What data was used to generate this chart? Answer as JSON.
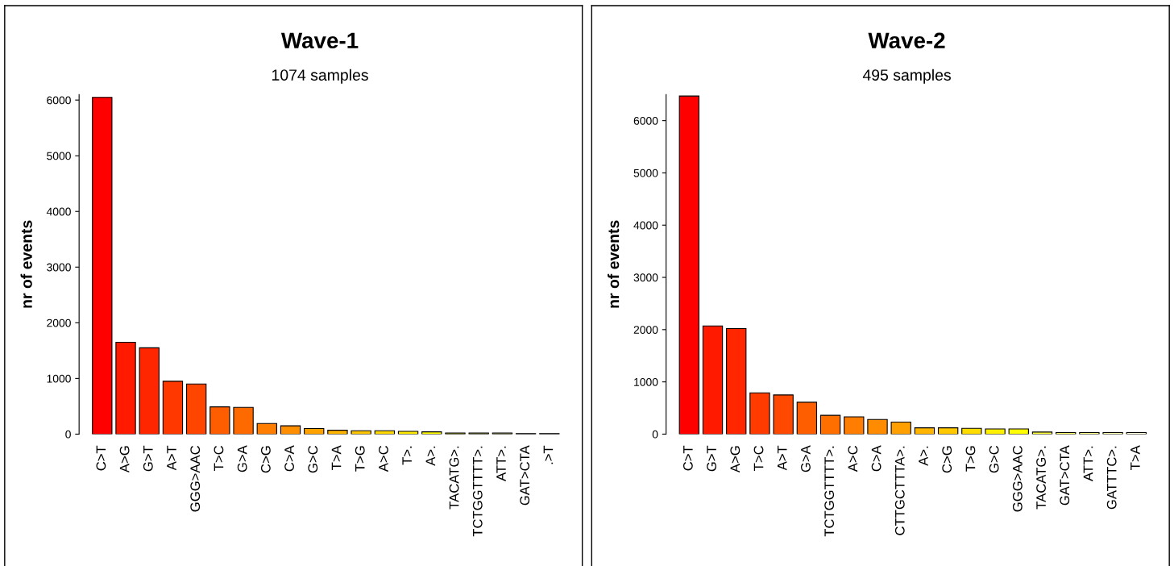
{
  "chart_data": [
    {
      "type": "bar",
      "title": "Wave-1",
      "subtitle": "1074 samples",
      "ylabel": "nr of events",
      "categories": [
        "C>T",
        "A>G",
        "G>T",
        "A>T",
        "GGG>AAC",
        "T>C",
        "G>A",
        "C>G",
        "C>A",
        "G>C",
        "T>A",
        "T>G",
        "A>C",
        "T>.",
        "A>.",
        "TACATG>.",
        "TCTGGTTTT>.",
        "ATT>.",
        "GAT>CTA",
        ".>T"
      ],
      "values": [
        6050,
        1650,
        1550,
        950,
        900,
        490,
        480,
        190,
        150,
        100,
        70,
        60,
        60,
        50,
        40,
        20,
        20,
        20,
        10,
        10
      ],
      "colors": [
        "#ff0000",
        "#ff1a00",
        "#ff2600",
        "#ff3800",
        "#ff4500",
        "#ff5e00",
        "#ff6a00",
        "#ff7d00",
        "#ff8f00",
        "#ffa200",
        "#ffb400",
        "#ffc600",
        "#ffd800",
        "#ffea00",
        "#fffc00",
        "#8a8a1a",
        "#80803a",
        "#8c8c55",
        "#202020",
        "#101010"
      ],
      "ylim": [
        0,
        6100
      ],
      "yticks": [
        0,
        1000,
        2000,
        3000,
        4000,
        5000,
        6000
      ],
      "grid": false,
      "legend": false
    },
    {
      "type": "bar",
      "title": "Wave-2",
      "subtitle": "495 samples",
      "ylabel": "nr of events",
      "categories": [
        "C>T",
        "G>T",
        "A>G",
        "T>C",
        "A>T",
        "G>A",
        "TCTGGTTTT>.",
        "A>C",
        "C>A",
        "CTTGCTTTA>.",
        "A>.",
        "C>G",
        "T>G",
        "G>C",
        "GGG>AAC",
        "TACATG>.",
        "GAT>CTA",
        "ATT>.",
        "GATTTC>.",
        "T>A"
      ],
      "values": [
        6470,
        2070,
        2020,
        790,
        750,
        610,
        360,
        330,
        280,
        230,
        120,
        120,
        110,
        100,
        100,
        40,
        30,
        30,
        30,
        30
      ],
      "colors": [
        "#ff0000",
        "#ff1a00",
        "#ff2600",
        "#ff3b00",
        "#ff4800",
        "#ff5e00",
        "#ff6f00",
        "#ff7d00",
        "#ff8c00",
        "#ffa000",
        "#ffb400",
        "#ffc800",
        "#ffdc00",
        "#fff000",
        "#ffff00",
        "#ffff40",
        "#ffff66",
        "#ffff8c",
        "#ffffb3",
        "#ffffdd"
      ],
      "ylim": [
        0,
        6500
      ],
      "yticks": [
        0,
        1000,
        2000,
        3000,
        4000,
        5000,
        6000
      ],
      "grid": false,
      "legend": false
    }
  ]
}
